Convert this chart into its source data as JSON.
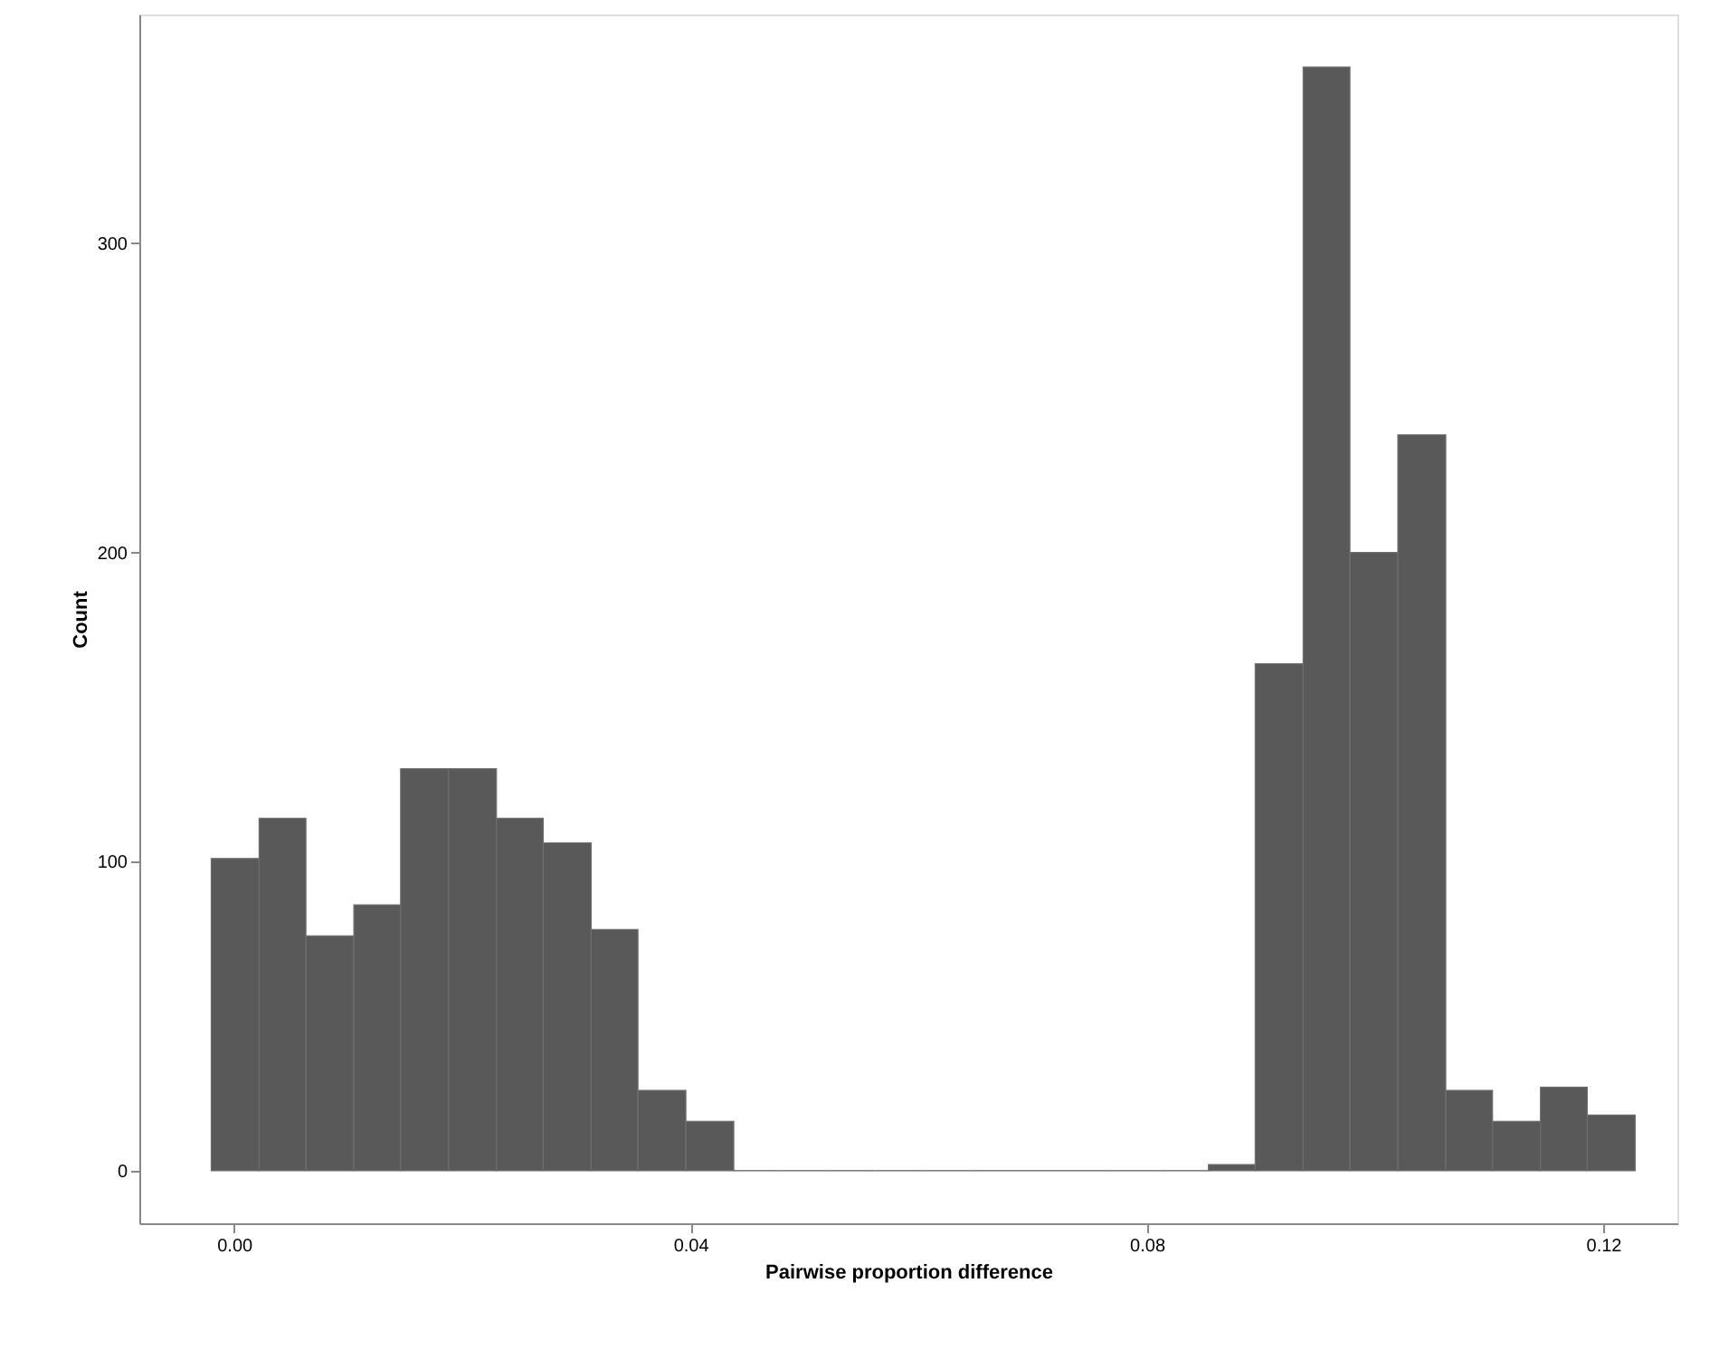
{
  "chart_data": {
    "type": "histogram",
    "xlabel": "Pairwise proportion difference",
    "ylabel": "Count",
    "color": "#595959",
    "bins": [
      -0.002,
      0.0022,
      0.0063,
      0.0105,
      0.0146,
      0.0188,
      0.023,
      0.0271,
      0.0313,
      0.0354,
      0.0396,
      0.0438,
      0.0479,
      0.0521,
      0.0562,
      0.0604,
      0.0646,
      0.0687,
      0.0729,
      0.077,
      0.0812,
      0.0854,
      0.0895,
      0.0937,
      0.0978,
      0.102,
      0.1062,
      0.1103,
      0.1145,
      0.1186,
      0.1228
    ],
    "values": [
      101,
      114,
      76,
      86,
      130,
      130,
      114,
      106,
      78,
      26,
      16,
      0,
      0,
      0,
      0,
      0,
      0,
      0,
      0,
      0,
      0,
      2,
      164,
      357,
      200,
      238,
      26,
      16,
      27,
      18
    ],
    "xlim": [
      -0.0083,
      0.1265
    ],
    "ylim": [
      -17,
      374
    ],
    "xticks": [
      {
        "value": 0,
        "label": "0.00"
      },
      0.04,
      0.08,
      0.12
    ],
    "yticks": [
      0,
      100,
      200,
      300
    ],
    "grid": false
  }
}
